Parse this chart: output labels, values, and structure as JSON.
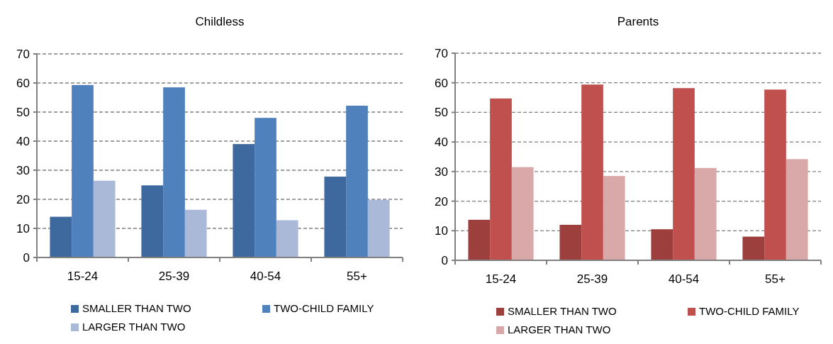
{
  "chart_data": [
    {
      "type": "bar",
      "title": "Childless",
      "categories": [
        "15-24",
        "25-39",
        "40-54",
        "55+"
      ],
      "series": [
        {
          "name": "SMALLER THAN TWO",
          "color": "#3e699e",
          "values": [
            14,
            24.8,
            39,
            27.8
          ]
        },
        {
          "name": "TWO-CHILD FAMILY",
          "color": "#4f81bd",
          "values": [
            59.3,
            58.5,
            48,
            52.2
          ]
        },
        {
          "name": "LARGER THAN TWO",
          "color": "#aab9d8",
          "values": [
            26.4,
            16.4,
            12.8,
            19.8
          ]
        }
      ],
      "ylim": [
        0,
        70
      ],
      "yticks": [
        0,
        10,
        20,
        30,
        40,
        50,
        60,
        70
      ],
      "grid": "y",
      "legend": "bottom"
    },
    {
      "type": "bar",
      "title": "Parents",
      "categories": [
        "15-24",
        "25-39",
        "40-54",
        "55+"
      ],
      "series": [
        {
          "name": "SMALLER THAN TWO",
          "color": "#9d3f3d",
          "values": [
            13.7,
            12,
            10.5,
            8
          ]
        },
        {
          "name": "TWO-CHILD FAMILY",
          "color": "#c0504d",
          "values": [
            54.7,
            59.4,
            58.2,
            57.7
          ]
        },
        {
          "name": "LARGER THAN TWO",
          "color": "#d9a8a8",
          "values": [
            31.5,
            28.5,
            31.2,
            34.2
          ]
        }
      ],
      "ylim": [
        0,
        70
      ],
      "yticks": [
        0,
        10,
        20,
        30,
        40,
        50,
        60,
        70
      ],
      "grid": "y",
      "legend": "bottom"
    }
  ]
}
